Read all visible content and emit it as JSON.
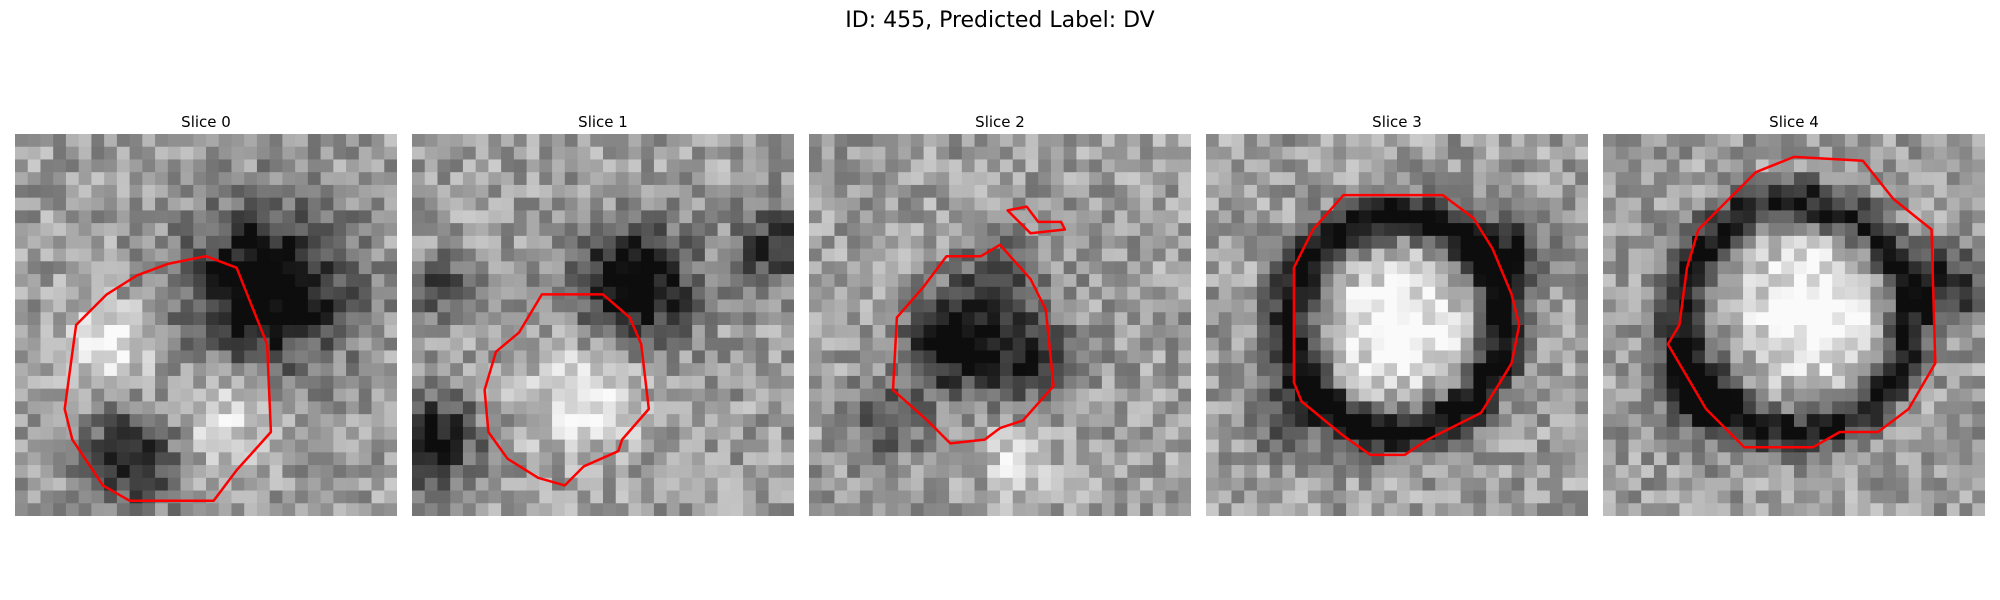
{
  "figure": {
    "title": "ID: 455, Predicted Label: DV"
  },
  "panels": [
    {
      "title": "Slice 0",
      "seed": 11,
      "contour_color": "#ff0000"
    },
    {
      "title": "Slice 1",
      "seed": 23,
      "contour_color": "#ff0000"
    },
    {
      "title": "Slice 2",
      "seed": 37,
      "contour_color": "#ff0000"
    },
    {
      "title": "Slice 3",
      "seed": 41,
      "contour_color": "#ff0000"
    },
    {
      "title": "Slice 4",
      "seed": 53,
      "contour_color": "#ff0000"
    }
  ],
  "colors": {
    "background": "#ffffff",
    "contour": "#ff0000"
  }
}
